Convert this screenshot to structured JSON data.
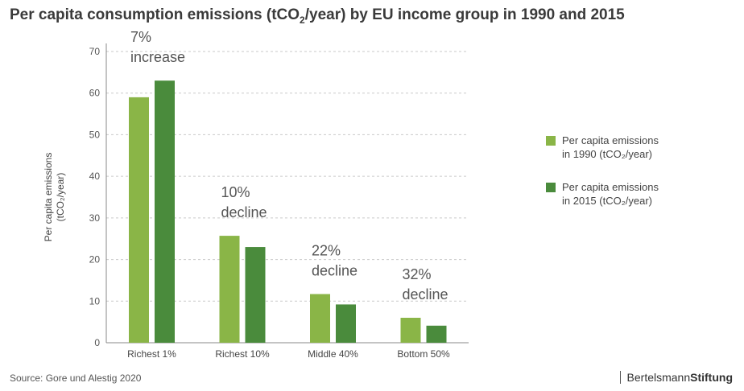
{
  "header": {
    "title_pre": "Per capita consumption emissions (tCO",
    "title_sub": "2",
    "title_post": "/year) by EU income group in 1990 and 2015"
  },
  "footer": {
    "source": "Source: Gore und Alestig 2020",
    "brand_regular": "Bertelsmann",
    "brand_bold": "Stiftung"
  },
  "legend": [
    {
      "line1": "Per capita emissions",
      "line2": "in 1990 (tCO₂/year)",
      "color": "#8ab547"
    },
    {
      "line1": "Per capita emissions",
      "line2": "in 2015 (tCO₂/year)",
      "color": "#4a8b3c"
    }
  ],
  "chart_data": {
    "type": "bar",
    "title": "Per capita consumption emissions (tCO2/year) by EU income group in 1990 and 2015",
    "categories": [
      "Richest 1%",
      "Richest 10%",
      "Middle 40%",
      "Bottom 50%"
    ],
    "series": [
      {
        "name": "Per capita emissions in 1990 (tCO₂/year)",
        "values": [
          59,
          25.7,
          11.7,
          6
        ],
        "color": "#8ab547"
      },
      {
        "name": "Per capita emissions in 2015 (tCO₂/year)",
        "values": [
          63,
          23,
          9.2,
          4.1
        ],
        "color": "#4a8b3c"
      }
    ],
    "ylabel_line1": "Per capita emissions",
    "ylabel_line2": "(tCO₂/year)",
    "ylim": [
      0,
      70
    ],
    "yticks": [
      0,
      10,
      20,
      30,
      40,
      50,
      60,
      70
    ],
    "grid": true,
    "legend_position": "right",
    "annotations": [
      {
        "line1": "7%",
        "line2": "increase"
      },
      {
        "line1": "10%",
        "line2": "decline"
      },
      {
        "line1": "22%",
        "line2": "decline"
      },
      {
        "line1": "32%",
        "line2": "decline"
      }
    ]
  }
}
